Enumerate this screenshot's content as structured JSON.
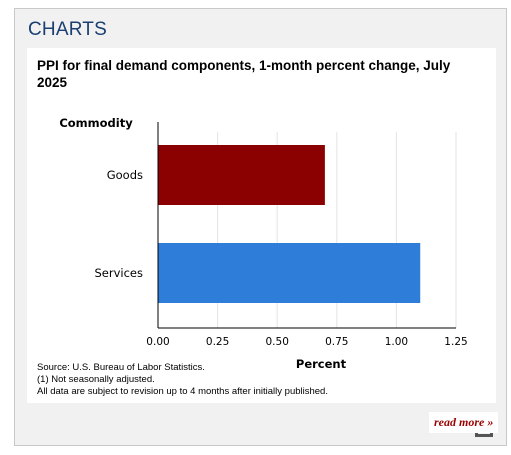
{
  "panel": {
    "title": "CHARTS"
  },
  "chart_data": {
    "type": "bar",
    "orientation": "horizontal",
    "title": "PPI for final demand components, 1-month percent change, July 2025",
    "category_axis_label": "Commodity",
    "value_axis_label": "Percent",
    "categories": [
      "Goods",
      "Services"
    ],
    "values": [
      0.7,
      1.1
    ],
    "colors": [
      "#8b0000",
      "#2e7dd8"
    ],
    "xlim": [
      0,
      1.25
    ],
    "ticks": [
      "0.00",
      "0.25",
      "0.50",
      "0.75",
      "1.00",
      "1.25"
    ],
    "grid": true
  },
  "notes": {
    "source": "Source: U.S. Bureau of Labor Statistics.",
    "note1": "(1) Not seasonally adjusted.",
    "note2": "All data are subject to revision up to 4 months after initially published."
  },
  "actions": {
    "download_icon": "download-icon",
    "read_more": "read more »"
  }
}
